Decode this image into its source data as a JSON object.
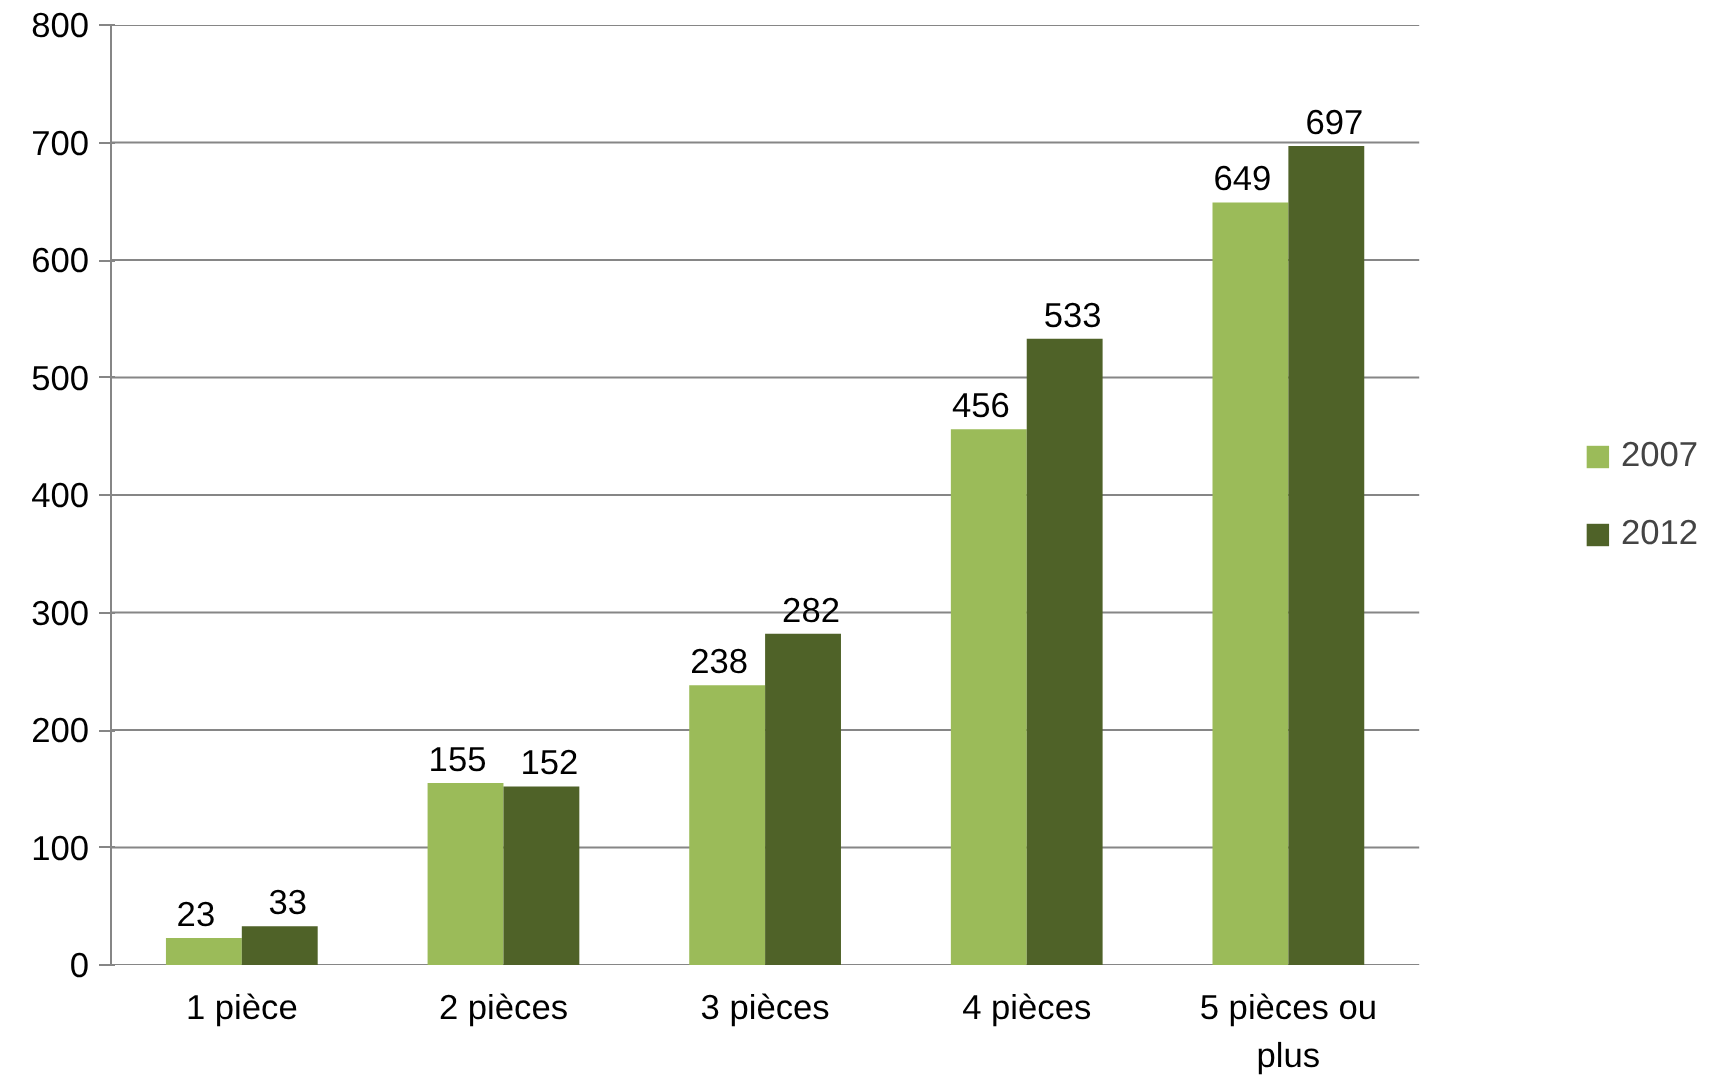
{
  "chart_data": {
    "type": "bar",
    "categories": [
      "1 pièce",
      "2 pièces",
      "3 pièces",
      "4 pièces",
      "5 pièces ou plus"
    ],
    "series": [
      {
        "name": "2007",
        "color": "#9bbb59",
        "values": [
          23,
          155,
          238,
          456,
          649
        ]
      },
      {
        "name": "2012",
        "color": "#4f6228",
        "values": [
          33,
          152,
          282,
          533,
          697
        ]
      }
    ],
    "ylim": [
      0,
      800
    ],
    "yticks": [
      0,
      100,
      200,
      300,
      400,
      500,
      600,
      700,
      800
    ],
    "grid": "y",
    "legend": "right",
    "data_labels": true
  }
}
